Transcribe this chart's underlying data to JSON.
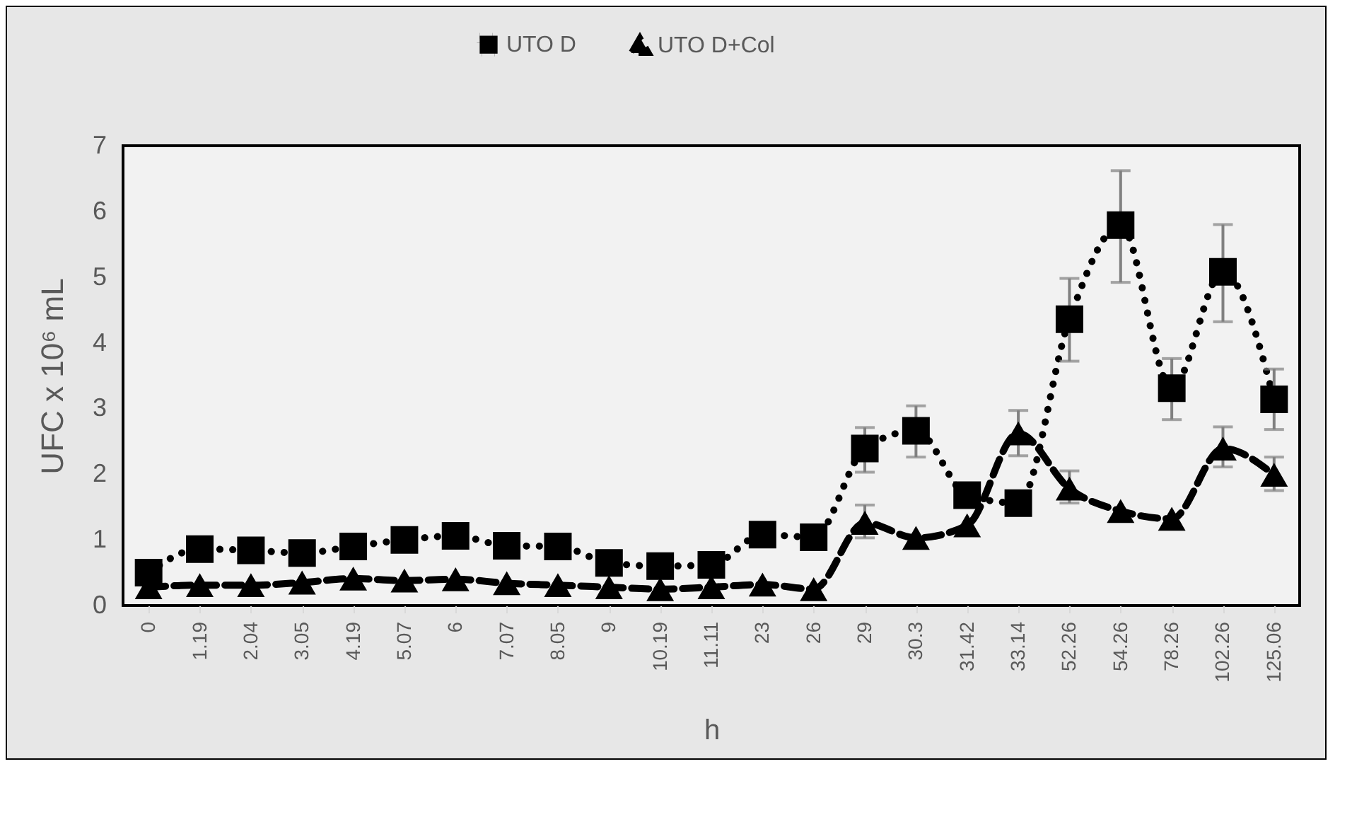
{
  "chart_data": {
    "type": "line",
    "xlabel": "h",
    "ylabel": "UFC x 10⁶ mL",
    "categories": [
      "0",
      "1.19",
      "2.04",
      "3.05",
      "4.19",
      "5.07",
      "6",
      "7.07",
      "8.05",
      "9",
      "10.19",
      "11.11",
      "23",
      "26",
      "29",
      "30.3",
      "31.42",
      "33.14",
      "52.26",
      "54.26",
      "78.26",
      "102.26",
      "125.06"
    ],
    "series": [
      {
        "name": "UTO D",
        "color": "#000000",
        "marker": "square",
        "line_style": "dotted",
        "values": [
          0.5,
          0.86,
          0.84,
          0.8,
          0.9,
          1.0,
          1.06,
          0.91,
          0.9,
          0.65,
          0.6,
          0.62,
          1.08,
          1.04,
          2.39,
          2.66,
          1.68,
          1.56,
          4.36,
          5.79,
          3.31,
          5.08,
          3.14
        ],
        "errors": [
          null,
          null,
          null,
          null,
          null,
          null,
          null,
          null,
          null,
          null,
          null,
          null,
          null,
          null,
          [
            2.03,
            2.71
          ],
          [
            2.26,
            3.04
          ],
          null,
          null,
          [
            3.72,
            4.98
          ],
          [
            4.92,
            6.62
          ],
          [
            2.83,
            3.76
          ],
          [
            4.32,
            5.8
          ],
          [
            2.68,
            3.6
          ]
        ]
      },
      {
        "name": "UTO D+Col",
        "color": "#000000",
        "marker": "triangle",
        "line_style": "dashed",
        "values": [
          0.28,
          0.31,
          0.31,
          0.35,
          0.41,
          0.38,
          0.4,
          0.34,
          0.31,
          0.28,
          0.25,
          0.28,
          0.32,
          0.25,
          1.26,
          1.03,
          1.22,
          2.62,
          1.78,
          1.44,
          1.32,
          2.39,
          1.99
        ],
        "errors": [
          null,
          null,
          null,
          null,
          null,
          null,
          null,
          null,
          null,
          null,
          null,
          null,
          null,
          null,
          [
            1.03,
            1.53
          ],
          null,
          null,
          [
            2.28,
            2.97
          ],
          [
            1.56,
            2.05
          ],
          null,
          null,
          [
            2.11,
            2.72
          ],
          [
            1.75,
            2.26
          ]
        ]
      }
    ],
    "ylim": [
      0,
      7
    ],
    "yticks": [
      0,
      1,
      2,
      3,
      4,
      5,
      6,
      7
    ],
    "grid": false,
    "legend": "top"
  }
}
